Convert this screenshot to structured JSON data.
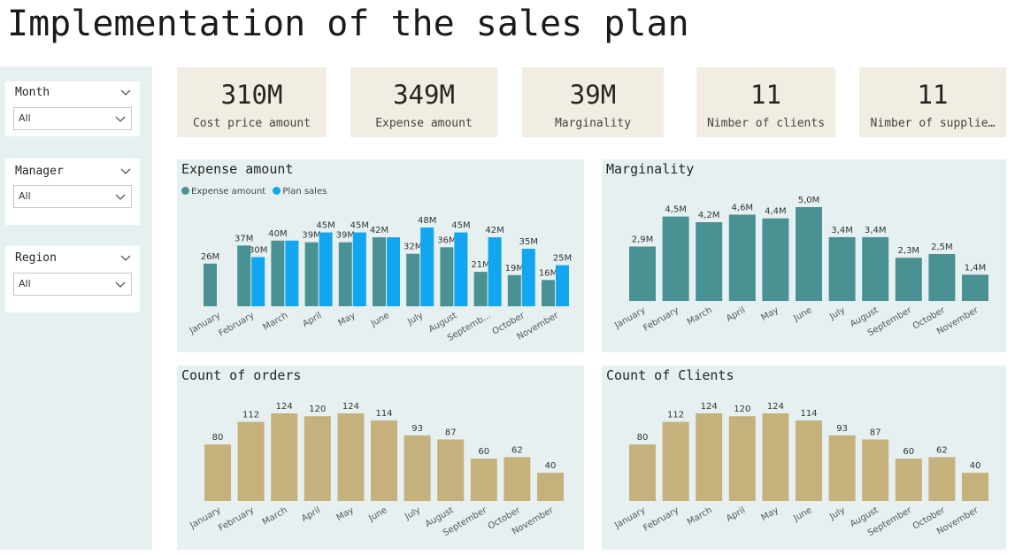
{
  "page_title": "Implementation of the sales plan",
  "filters": [
    {
      "label": "Month",
      "value": "All"
    },
    {
      "label": "Manager",
      "value": "All"
    },
    {
      "label": "Region",
      "value": "All"
    }
  ],
  "kpis": [
    {
      "value": "310M",
      "label": "Cost price amount"
    },
    {
      "value": "349M",
      "label": "Expense amount"
    },
    {
      "value": "39M",
      "label": "Marginality"
    },
    {
      "value": "11",
      "label": "Nimber of clients"
    },
    {
      "value": "11",
      "label": "Nimber of supplie…"
    }
  ],
  "colors": {
    "teal": "#4a9194",
    "blue": "#12a5f0",
    "gold": "#c5b17b",
    "panel_bg": "#e7f0f0",
    "kpi_bg": "#f2ede2"
  },
  "chart_data": [
    {
      "id": "expense",
      "type": "bar",
      "title": "Expense amount",
      "categories": [
        "January",
        "February",
        "March",
        "April",
        "May",
        "June",
        "July",
        "August",
        "Septemb...",
        "October",
        "November"
      ],
      "series": [
        {
          "name": "Expense amount",
          "values": [
            26,
            37,
            40,
            39,
            39,
            42,
            32,
            36,
            21,
            19,
            16
          ],
          "labels": [
            "26M",
            "37M",
            "40M",
            "39M",
            "39M",
            "42M",
            "32M",
            "36M",
            "21M",
            "19M",
            "16M"
          ],
          "color": "#4a9194"
        },
        {
          "name": "Plan sales",
          "values": [
            null,
            30,
            40,
            45,
            45,
            42,
            48,
            45,
            42,
            35,
            25
          ],
          "labels": [
            null,
            "30M",
            null,
            "45M",
            "45M",
            null,
            "48M",
            "45M",
            "42M",
            "35M",
            "25M"
          ],
          "color": "#12a5f0"
        }
      ],
      "legend": "top-left",
      "ylim": [
        0,
        48
      ]
    },
    {
      "id": "marginality",
      "type": "bar",
      "title": "Marginality",
      "categories": [
        "January",
        "February",
        "March",
        "April",
        "May",
        "June",
        "July",
        "August",
        "September",
        "October",
        "November"
      ],
      "series": [
        {
          "values": [
            2.9,
            4.5,
            4.2,
            4.6,
            4.4,
            5.0,
            3.4,
            3.4,
            2.3,
            2.5,
            1.4
          ],
          "labels": [
            "2,9M",
            "4,5M",
            "4,2M",
            "4,6M",
            "4,4M",
            "5,0M",
            "3,4M",
            "3,4M",
            "2,3M",
            "2,5M",
            "1,4M"
          ],
          "color": "#4a9194"
        }
      ],
      "ylim": [
        0,
        5.0
      ]
    },
    {
      "id": "orders",
      "type": "bar",
      "title": "Count of orders",
      "categories": [
        "January",
        "February",
        "March",
        "April",
        "May",
        "June",
        "July",
        "August",
        "September",
        "October",
        "November"
      ],
      "series": [
        {
          "values": [
            80,
            112,
            124,
            120,
            124,
            114,
            93,
            87,
            60,
            62,
            40
          ],
          "labels": [
            "80",
            "112",
            "124",
            "120",
            "124",
            "114",
            "93",
            "87",
            "60",
            "62",
            "40"
          ],
          "color": "#c5b17b"
        }
      ],
      "ylim": [
        0,
        124
      ]
    },
    {
      "id": "clients",
      "type": "bar",
      "title": "Count of Clients",
      "categories": [
        "January",
        "February",
        "March",
        "April",
        "May",
        "June",
        "July",
        "August",
        "September",
        "October",
        "November"
      ],
      "series": [
        {
          "values": [
            80,
            112,
            124,
            120,
            124,
            114,
            93,
            87,
            60,
            62,
            40
          ],
          "labels": [
            "80",
            "112",
            "124",
            "120",
            "124",
            "114",
            "93",
            "87",
            "60",
            "62",
            "40"
          ],
          "color": "#c5b17b"
        }
      ],
      "ylim": [
        0,
        124
      ]
    }
  ]
}
